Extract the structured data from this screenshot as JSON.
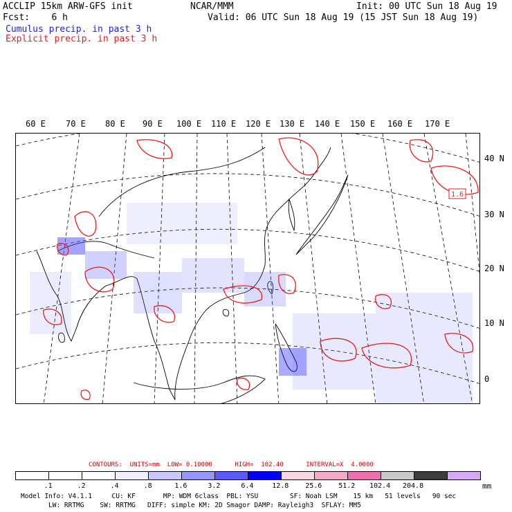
{
  "header": {
    "line1_left": "ACCLIP 15km ARW-GFS init",
    "line1_mid": "NCAR/MMM",
    "line1_right": "Init: 00 UTC Sun 18 Aug 19",
    "line2_left": "Fcst:    6 h",
    "line2_right": "Valid: 06 UTC Sun 18 Aug 19 (15 JST Sun 18 Aug 19)",
    "cumulus_label": "Cumulus precip. in past 3 h",
    "explicit_label": "Explicit precip. in past 3 h"
  },
  "colors": {
    "cumulus": "#1e1ee6",
    "explicit": "#e61e1e",
    "contour_text": "#d00000"
  },
  "longitude_labels": [
    "60 E",
    "70 E",
    "80 E",
    "90 E",
    "100 E",
    "110 E",
    "120 E",
    "130 E",
    "140 E",
    "150 E",
    "160 E",
    "170 E"
  ],
  "latitude_labels": [
    "40 N",
    "30 N",
    "20 N",
    "10 N",
    "0"
  ],
  "map": {
    "high_label": "1.6"
  },
  "contours": {
    "text": "CONTOURS:  UNITS=mm  LOW= 0.10000      HIGH=  102.40      INTERVAL=X  4.0000"
  },
  "colorbar": {
    "unit": "mm",
    "levels": [
      ".1",
      ".2",
      ".4",
      ".8",
      "1.6",
      "3.2",
      "6.4",
      "12.8",
      "25.6",
      "51.2",
      "102.4",
      "204.8"
    ],
    "colors": [
      "#ffffff",
      "#ffffff",
      "#ffffff",
      "#eeeeff",
      "#c8c8ff",
      "#9696ff",
      "#5a5aff",
      "#0000ff",
      "#fcd7e1",
      "#f5aac8",
      "#ee6eb0",
      "#c8c8c8",
      "#3c3c3c",
      "#d8a8f8"
    ]
  },
  "footer": {
    "line1": "Model Info: V4.1.1     CU: KF       MP: WDM 6class  PBL: YSU        SF: Noah LSM    15 km   51 levels   90 sec",
    "line2": "LW: RRTMG    SW: RRTMG   DIFF: simple KM: 2D Smagor DAMP: Rayleigh3  SFLAY: MM5"
  }
}
